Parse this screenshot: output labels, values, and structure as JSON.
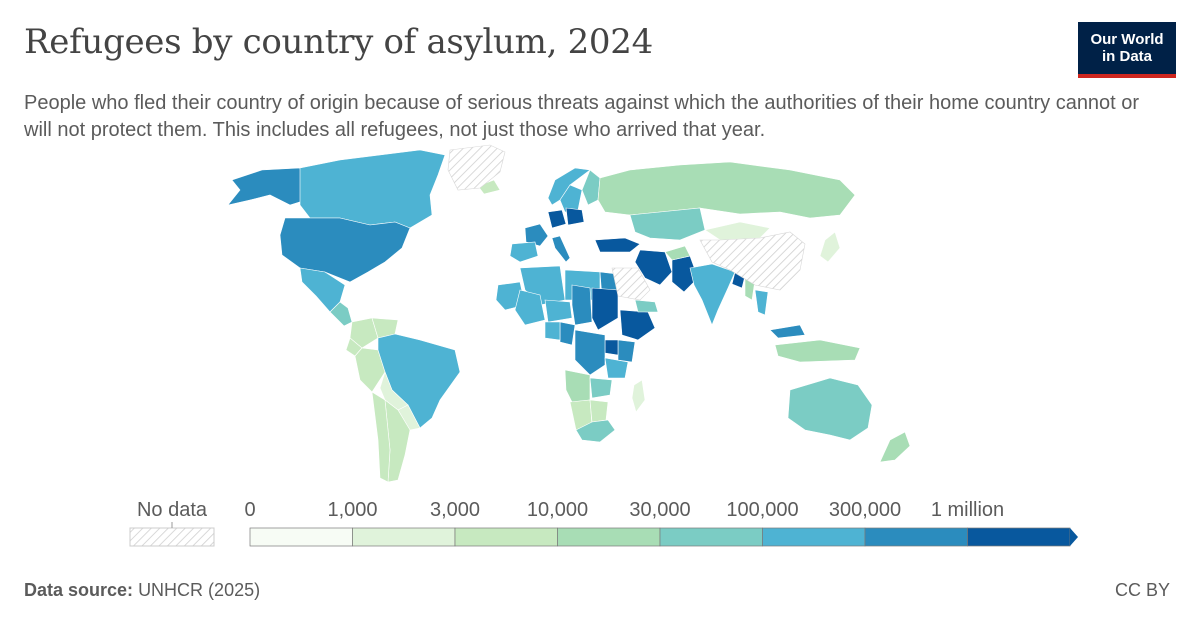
{
  "header": {
    "title": "Refugees by country of asylum, 2024",
    "subtitle": "People who fled their country of origin because of serious threats against which the authorities of their home country cannot or will not protect them. This includes all refugees, not just those who arrived that year."
  },
  "logo": {
    "line1": "Our World",
    "line2": "in Data",
    "bg_color": "#002147",
    "accent_color": "#ce261e"
  },
  "legend": {
    "no_data_label": "No data",
    "tick_labels": [
      "0",
      "1,000",
      "3,000",
      "10,000",
      "30,000",
      "100,000",
      "300,000",
      "1 million"
    ],
    "bin_colors": [
      "#f7fcf5",
      "#e0f3db",
      "#c7e9c0",
      "#a8ddb5",
      "#7bccc4",
      "#4eb3d3",
      "#2b8cbe",
      "#08589e"
    ]
  },
  "chart_data": {
    "type": "choropleth",
    "title": "Refugees by country of asylum, 2024",
    "variable": "Refugees by country of asylum",
    "year": 2024,
    "bins": [
      0,
      1000,
      3000,
      10000,
      30000,
      100000,
      300000,
      1000000
    ],
    "no_data_regions": [
      "Greenland",
      "China",
      "Saudi Arabia"
    ],
    "regions": [
      {
        "name": "Alaska (United States)",
        "bin": 6
      },
      {
        "name": "Canada",
        "bin": 5
      },
      {
        "name": "United States",
        "bin": 6
      },
      {
        "name": "Mexico",
        "bin": 5
      },
      {
        "name": "Central America",
        "bin": 4
      },
      {
        "name": "Colombia",
        "bin": 2
      },
      {
        "name": "Venezuela",
        "bin": 2
      },
      {
        "name": "Ecuador",
        "bin": 2
      },
      {
        "name": "Peru",
        "bin": 2
      },
      {
        "name": "Brazil",
        "bin": 5
      },
      {
        "name": "Bolivia",
        "bin": 1
      },
      {
        "name": "Paraguay",
        "bin": 1
      },
      {
        "name": "Argentina",
        "bin": 2
      },
      {
        "name": "Chile",
        "bin": 2
      },
      {
        "name": "Iceland",
        "bin": 2
      },
      {
        "name": "Norway",
        "bin": 5
      },
      {
        "name": "Sweden",
        "bin": 5
      },
      {
        "name": "Finland",
        "bin": 4
      },
      {
        "name": "Russia",
        "bin": 3
      },
      {
        "name": "Kazakhstan",
        "bin": 4
      },
      {
        "name": "Mongolia",
        "bin": 1
      },
      {
        "name": "Japan",
        "bin": 1
      },
      {
        "name": "France",
        "bin": 6
      },
      {
        "name": "Germany",
        "bin": 7
      },
      {
        "name": "Poland",
        "bin": 7
      },
      {
        "name": "Italy",
        "bin": 6
      },
      {
        "name": "Spain",
        "bin": 5
      },
      {
        "name": "Turkey",
        "bin": 7
      },
      {
        "name": "Iran",
        "bin": 7
      },
      {
        "name": "Pakistan",
        "bin": 7
      },
      {
        "name": "Afghanistan",
        "bin": 3
      },
      {
        "name": "India",
        "bin": 5
      },
      {
        "name": "Bangladesh",
        "bin": 7
      },
      {
        "name": "Myanmar",
        "bin": 3
      },
      {
        "name": "Thailand",
        "bin": 5
      },
      {
        "name": "Malaysia",
        "bin": 6
      },
      {
        "name": "Indonesia",
        "bin": 3
      },
      {
        "name": "Australia",
        "bin": 4
      },
      {
        "name": "New Zealand",
        "bin": 3
      },
      {
        "name": "Algeria",
        "bin": 5
      },
      {
        "name": "Libya",
        "bin": 5
      },
      {
        "name": "Egypt",
        "bin": 6
      },
      {
        "name": "Mauritania",
        "bin": 5
      },
      {
        "name": "Mali",
        "bin": 5
      },
      {
        "name": "Niger",
        "bin": 5
      },
      {
        "name": "Chad",
        "bin": 6
      },
      {
        "name": "Sudan",
        "bin": 7
      },
      {
        "name": "Ethiopia",
        "bin": 7
      },
      {
        "name": "Kenya",
        "bin": 6
      },
      {
        "name": "Uganda",
        "bin": 7
      },
      {
        "name": "Cameroon",
        "bin": 6
      },
      {
        "name": "Nigeria",
        "bin": 5
      },
      {
        "name": "Congo (DRC)",
        "bin": 6
      },
      {
        "name": "Tanzania",
        "bin": 5
      },
      {
        "name": "Angola",
        "bin": 3
      },
      {
        "name": "Zambia",
        "bin": 4
      },
      {
        "name": "Namibia",
        "bin": 2
      },
      {
        "name": "Botswana",
        "bin": 2
      },
      {
        "name": "South Africa",
        "bin": 4
      },
      {
        "name": "Madagascar",
        "bin": 1
      },
      {
        "name": "Yemen",
        "bin": 4
      }
    ]
  },
  "footer": {
    "source_label": "Data source:",
    "source_value": "UNHCR (2025)",
    "license": "CC BY"
  }
}
